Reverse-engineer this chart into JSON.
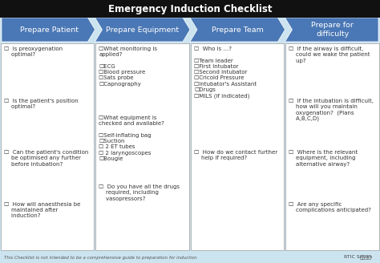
{
  "title_display": "Emergency Induction Checklist",
  "bg_color": "#cce4f0",
  "header_bg": "#111111",
  "header_text_color": "#ffffff",
  "box_bg": "#ffffff",
  "box_border": "#aaaaaa",
  "text_color": "#333333",
  "footer_text": "This Checklist is not intended to be a comprehensive guide to preparation for induction",
  "footer_right": "RTIC Seven",
  "arrow_color": "#4a77b5",
  "figw": 4.74,
  "figh": 3.28,
  "dpi": 100,
  "columns": [
    {
      "header": "Prepare Patient",
      "items": [
        "☐  Is preoxygenation\n    optimal?",
        "☐  Is the patient's position\n    optimal?",
        "☐  Can the patient's condition\n    be optimised any further\n    before intubation?",
        "☐  How will anaesthesia be\n    maintained after\n    induction?"
      ]
    },
    {
      "header": "Prepare Equipment",
      "items": [
        "☐What monitoring is\napplied?\n\n☐ECG\n☐Blood pressure\n☐Sats probe\n☐Capnography",
        "☐What equipment is\nchecked and available?\n\n☐Self-inflating bag\n☐Suction\n☐ 2 ET tubes\n☐ 2 laryngoscopes\n☐Bougie",
        "☐  Do you have all the drugs\n    required, including\n    vasopressors?"
      ]
    },
    {
      "header": "Prepare Team",
      "items": [
        "☐  Who is ...?\n\n☐Team leader\n☐First Intubator\n☐Second Intubator\n☐Cricoid Pressure\n☐Intubator's Assistant\n☐Drugs\n☐MILS (if indicated)",
        "☐  How do we contact further\n    help if required?"
      ]
    },
    {
      "header": "Prepare for\ndifficulty",
      "items": [
        "☐  If the airway is difficult,\n    could we wake the patient\n    up?",
        "☐  If the intubation is difficult,\n    how will you maintain\n    oxygenation?  (Plans\n    A,B,C,D)",
        "☐  Where is the relevant\n    equipment, including\n    alternative airway?",
        "☐  Are any specific\n    complications anticipated?"
      ]
    }
  ]
}
